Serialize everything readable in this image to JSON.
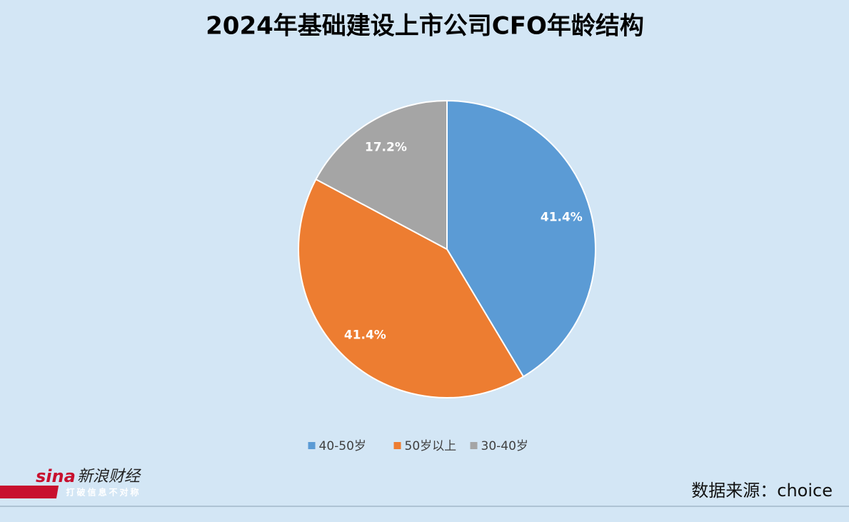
{
  "chart_data": {
    "type": "pie",
    "title": "2024年基础建设上市公司CFO年龄结构",
    "categories": [
      "40-50岁",
      "50岁以上",
      "30-40岁"
    ],
    "values": [
      41.4,
      41.4,
      17.2
    ],
    "value_labels": [
      "41.4%",
      "41.4%",
      "17.2%"
    ],
    "colors": [
      "#5b9bd5",
      "#ed7d31",
      "#a5a5a5"
    ],
    "legend": "bottom"
  },
  "source": "数据来源：choice",
  "logo": {
    "brand": "sina",
    "name": "新浪财经",
    "slogan": "打破信息不对称"
  }
}
